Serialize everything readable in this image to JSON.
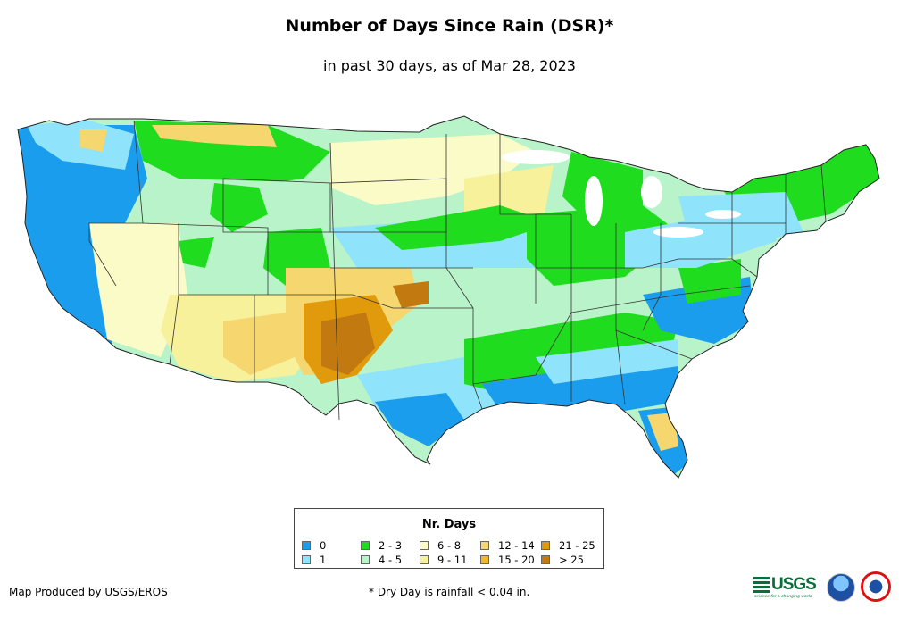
{
  "title": "Number of Days Since Rain (DSR)*",
  "subtitle": "in past 30 days, as of Mar 28, 2023",
  "legend": {
    "title": "Nr. Days",
    "items": [
      {
        "label": "0",
        "color": "#1a9ded"
      },
      {
        "label": "1",
        "color": "#8fe3fb"
      },
      {
        "label": "2 - 3",
        "color": "#1fdc1f"
      },
      {
        "label": "4 - 5",
        "color": "#b9f3c9"
      },
      {
        "label": "6 - 8",
        "color": "#fbfbc7"
      },
      {
        "label": "9 - 11",
        "color": "#f6f19a"
      },
      {
        "label": "12 - 14",
        "color": "#f6d66e"
      },
      {
        "label": "15 - 20",
        "color": "#f0b92d"
      },
      {
        "label": "21 - 25",
        "color": "#e09a0c"
      },
      {
        "label": "> 25",
        "color": "#c27a10"
      }
    ]
  },
  "footer": {
    "credit": "Map Produced by USGS/EROS",
    "note": "* Dry Day is rainfall < 0.04 in."
  },
  "logos": {
    "usgs_name": "USGS",
    "usgs_tagline": "science for a changing world"
  }
}
